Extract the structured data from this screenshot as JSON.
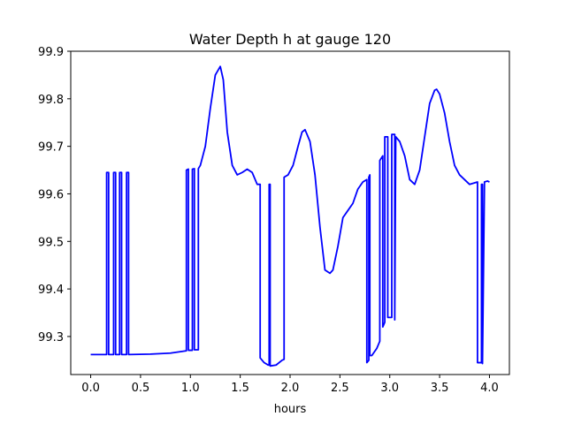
{
  "chart_data": {
    "type": "line",
    "title": "Water Depth h at gauge 120",
    "xlabel": "hours",
    "ylabel": "",
    "xlim": [
      -0.2,
      4.2
    ],
    "ylim": [
      99.22,
      99.9
    ],
    "xticks": [
      0.0,
      0.5,
      1.0,
      1.5,
      2.0,
      2.5,
      3.0,
      3.5,
      4.0
    ],
    "xtick_labels": [
      "0.0",
      "0.5",
      "1.0",
      "1.5",
      "2.0",
      "2.5",
      "3.0",
      "3.5",
      "4.0"
    ],
    "yticks": [
      99.3,
      99.4,
      99.5,
      99.6,
      99.7,
      99.8,
      99.9
    ],
    "ytick_labels": [
      "99.3",
      "99.4",
      "99.5",
      "99.6",
      "99.7",
      "99.8",
      "99.9"
    ],
    "grid": false,
    "series": [
      {
        "color": "#0000ff",
        "x": [
          0.0,
          0.16,
          0.16,
          0.18,
          0.18,
          0.23,
          0.23,
          0.25,
          0.25,
          0.29,
          0.29,
          0.31,
          0.31,
          0.36,
          0.36,
          0.38,
          0.38,
          0.6,
          0.8,
          0.96,
          0.96,
          0.98,
          0.98,
          1.02,
          1.02,
          1.04,
          1.04,
          1.08,
          1.08,
          1.1,
          1.15,
          1.2,
          1.25,
          1.3,
          1.33,
          1.37,
          1.42,
          1.47,
          1.52,
          1.57,
          1.62,
          1.67,
          1.7,
          1.7,
          1.74,
          1.78,
          1.79,
          1.79,
          1.8,
          1.8,
          1.86,
          1.92,
          1.94,
          1.94,
          1.98,
          2.03,
          2.08,
          2.12,
          2.15,
          2.2,
          2.25,
          2.3,
          2.35,
          2.4,
          2.43,
          2.48,
          2.53,
          2.58,
          2.63,
          2.68,
          2.73,
          2.77,
          2.77,
          2.79,
          2.79,
          2.8,
          2.8,
          2.82,
          2.82,
          2.87,
          2.9,
          2.9,
          2.93,
          2.93,
          2.95,
          2.95,
          2.98,
          2.98,
          3.02,
          3.02,
          3.05,
          3.05,
          3.06,
          3.1,
          3.15,
          3.2,
          3.25,
          3.3,
          3.35,
          3.4,
          3.45,
          3.47,
          3.5,
          3.55,
          3.6,
          3.65,
          3.7,
          3.75,
          3.8,
          3.88,
          3.88,
          3.89,
          3.9,
          3.92,
          3.92,
          3.93,
          3.93,
          3.95,
          3.98,
          4.0
        ],
        "y": [
          99.262,
          99.262,
          99.645,
          99.645,
          99.262,
          99.262,
          99.645,
          99.645,
          99.262,
          99.262,
          99.645,
          99.645,
          99.262,
          99.262,
          99.645,
          99.645,
          99.262,
          99.263,
          99.265,
          99.27,
          99.65,
          99.652,
          99.271,
          99.271,
          99.652,
          99.653,
          99.272,
          99.272,
          99.653,
          99.66,
          99.7,
          99.78,
          99.85,
          99.868,
          99.84,
          99.73,
          99.66,
          99.64,
          99.645,
          99.652,
          99.645,
          99.62,
          99.62,
          99.255,
          99.245,
          99.24,
          99.24,
          99.62,
          99.62,
          99.238,
          99.24,
          99.25,
          99.252,
          99.635,
          99.64,
          99.66,
          99.7,
          99.73,
          99.735,
          99.71,
          99.64,
          99.53,
          99.44,
          99.433,
          99.44,
          99.49,
          99.55,
          99.565,
          99.58,
          99.61,
          99.625,
          99.63,
          99.245,
          99.25,
          99.635,
          99.64,
          99.26,
          99.26,
          99.26,
          99.275,
          99.29,
          99.67,
          99.68,
          99.32,
          99.33,
          99.72,
          99.72,
          99.34,
          99.34,
          99.725,
          99.725,
          99.335,
          99.72,
          99.71,
          99.68,
          99.63,
          99.62,
          99.65,
          99.72,
          99.79,
          99.818,
          99.82,
          99.81,
          99.77,
          99.71,
          99.66,
          99.64,
          99.63,
          99.62,
          99.625,
          99.245,
          99.245,
          99.245,
          99.245,
          99.62,
          99.62,
          99.243,
          99.625,
          99.627,
          99.625
        ]
      }
    ]
  }
}
